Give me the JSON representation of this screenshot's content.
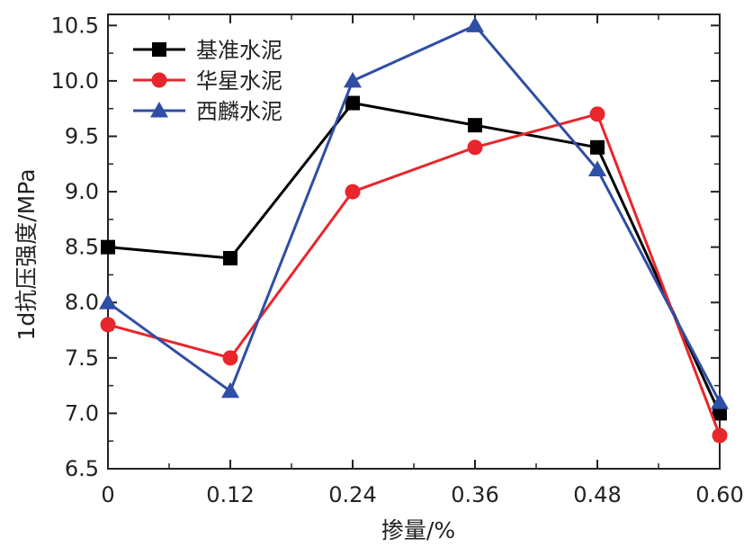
{
  "chart_data": {
    "type": "line",
    "title": "",
    "xlabel": "掺量/%",
    "ylabel": "1d抗压强度/MPa",
    "x": [
      0,
      0.12,
      0.24,
      0.36,
      0.48,
      0.6
    ],
    "x_tick_labels": [
      "0",
      "0.12",
      "0.24",
      "0.36",
      "0.48",
      "0.60"
    ],
    "xlim": [
      0,
      0.6
    ],
    "ylim": [
      6.5,
      10.6
    ],
    "y_ticks": [
      6.5,
      7.0,
      7.5,
      8.0,
      8.5,
      9.0,
      9.5,
      10.0,
      10.5
    ],
    "y_tick_labels": [
      "6.5",
      "7.0",
      "7.5",
      "8.0",
      "8.5",
      "9.0",
      "9.5",
      "10.0",
      "10.5"
    ],
    "grid": false,
    "legend_position": "top-left",
    "series": [
      {
        "name": "基准水泥",
        "color": "#000000",
        "marker": "square",
        "values": [
          8.5,
          8.4,
          9.8,
          9.6,
          9.4,
          7.0
        ]
      },
      {
        "name": "华星水泥",
        "color": "#e8262b",
        "marker": "circle",
        "values": [
          7.8,
          7.5,
          9.0,
          9.4,
          9.7,
          6.8
        ]
      },
      {
        "name": "西麟水泥",
        "color": "#2f4ea5",
        "marker": "triangle",
        "values": [
          8.0,
          7.2,
          10.0,
          10.5,
          9.2,
          7.1
        ]
      }
    ]
  }
}
